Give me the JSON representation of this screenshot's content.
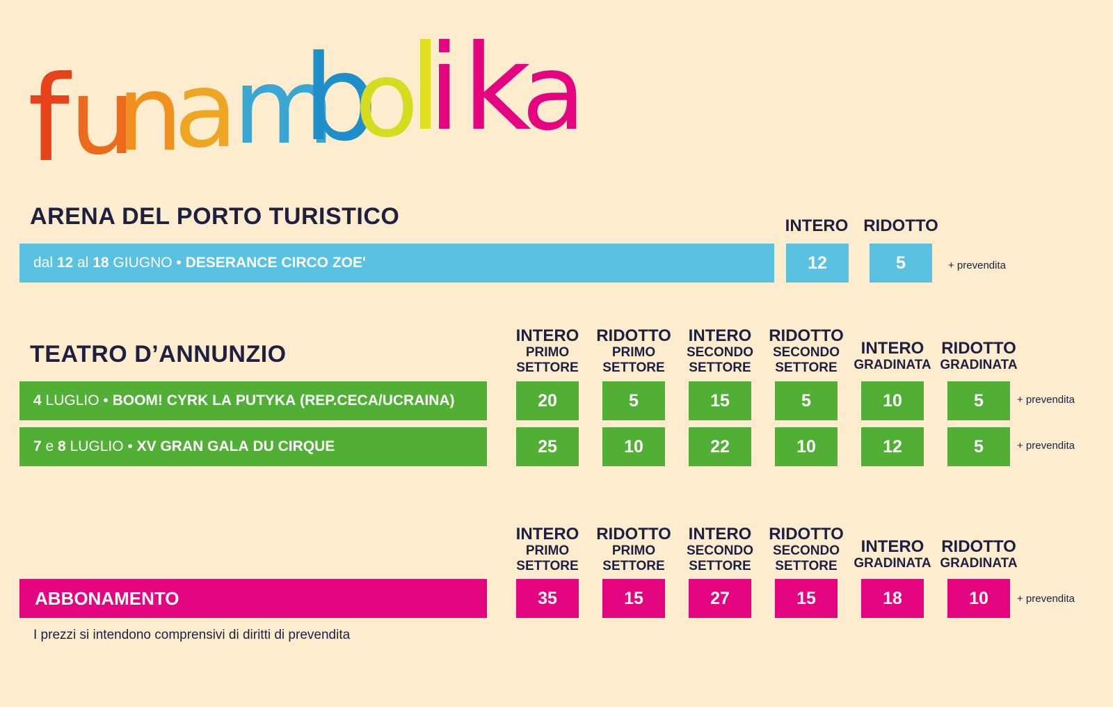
{
  "logo": {
    "text": "funambolika",
    "letters": [
      {
        "char": "f",
        "color": "#E8421A"
      },
      {
        "char": "u",
        "color": "#EC6A1C"
      },
      {
        "char": "n",
        "color": "#F0901E"
      },
      {
        "char": "a",
        "color": "#EDA522"
      },
      {
        "char": "m",
        "color": "#3AA6D3"
      },
      {
        "char": "b",
        "color": "#1E8FC8"
      },
      {
        "char": "o",
        "color": "#D7DC20"
      },
      {
        "char": "l",
        "color": "#E0E020"
      },
      {
        "char": "i",
        "color": "#E4047F"
      },
      {
        "char": "k",
        "color": "#E4047F"
      },
      {
        "char": "a",
        "color": "#E4047F"
      }
    ]
  },
  "colors": {
    "background": "#FDEDCE",
    "text": "#1E2042",
    "blue": "#5BC1E0",
    "green": "#52AF35",
    "pink": "#E4047F"
  },
  "arena": {
    "title": "ARENA DEL PORTO TURISTICO",
    "headers": [
      "INTERO",
      "RIDOTTO"
    ],
    "event": {
      "parts": [
        {
          "t": "dal ",
          "b": false
        },
        {
          "t": "12",
          "b": true
        },
        {
          "t": " al ",
          "b": false
        },
        {
          "t": "18",
          "b": true
        },
        {
          "t": " GIUGNO • ",
          "b": false
        },
        {
          "t": "DESERANCE CIRCO ZOE'",
          "b": true
        }
      ],
      "prices": [
        "12",
        "5"
      ]
    },
    "prevendita": "+ prevendita"
  },
  "teatro": {
    "title": "TEATRO D’ANNUNZIO",
    "headers": [
      {
        "l1": "INTERO",
        "l2": "PRIMO",
        "l3": "SETTORE"
      },
      {
        "l1": "RIDOTTO",
        "l2": "PRIMO",
        "l3": "SETTORE"
      },
      {
        "l1": "INTERO",
        "l2": "SECONDO",
        "l3": "SETTORE"
      },
      {
        "l1": "RIDOTTO",
        "l2": "SECONDO",
        "l3": "SETTORE"
      },
      {
        "l1": "INTERO",
        "l2": "GRADINATA",
        "l3": ""
      },
      {
        "l1": "RIDOTTO",
        "l2": "GRADINATA",
        "l3": ""
      }
    ],
    "events": [
      {
        "parts": [
          {
            "t": "4",
            "b": true
          },
          {
            "t": " LUGLIO • ",
            "b": false
          },
          {
            "t": "BOOM! CYRK LA PUTYKA (REP.CECA/UCRAINA)",
            "b": true
          }
        ],
        "prices": [
          "20",
          "5",
          "15",
          "5",
          "10",
          "5"
        ]
      },
      {
        "parts": [
          {
            "t": "7",
            "b": true
          },
          {
            "t": " e ",
            "b": false
          },
          {
            "t": "8",
            "b": true
          },
          {
            "t": " LUGLIO • ",
            "b": false
          },
          {
            "t": "XV GRAN GALA DU CIRQUE",
            "b": true
          }
        ],
        "prices": [
          "25",
          "10",
          "22",
          "10",
          "12",
          "5"
        ]
      }
    ],
    "prevendita": "+ prevendita"
  },
  "abbonamento": {
    "label": "ABBONAMENTO",
    "headers": [
      {
        "l1": "INTERO",
        "l2": "PRIMO",
        "l3": "SETTORE"
      },
      {
        "l1": "RIDOTTO",
        "l2": "PRIMO",
        "l3": "SETTORE"
      },
      {
        "l1": "INTERO",
        "l2": "SECONDO",
        "l3": "SETTORE"
      },
      {
        "l1": "RIDOTTO",
        "l2": "SECONDO",
        "l3": "SETTORE"
      },
      {
        "l1": "INTERO",
        "l2": "GRADINATA",
        "l3": ""
      },
      {
        "l1": "RIDOTTO",
        "l2": "GRADINATA",
        "l3": ""
      }
    ],
    "prices": [
      "35",
      "15",
      "27",
      "15",
      "18",
      "10"
    ],
    "prevendita": "+ prevendita"
  },
  "note": "I prezzi si intendono comprensivi di diritti di prevendita"
}
